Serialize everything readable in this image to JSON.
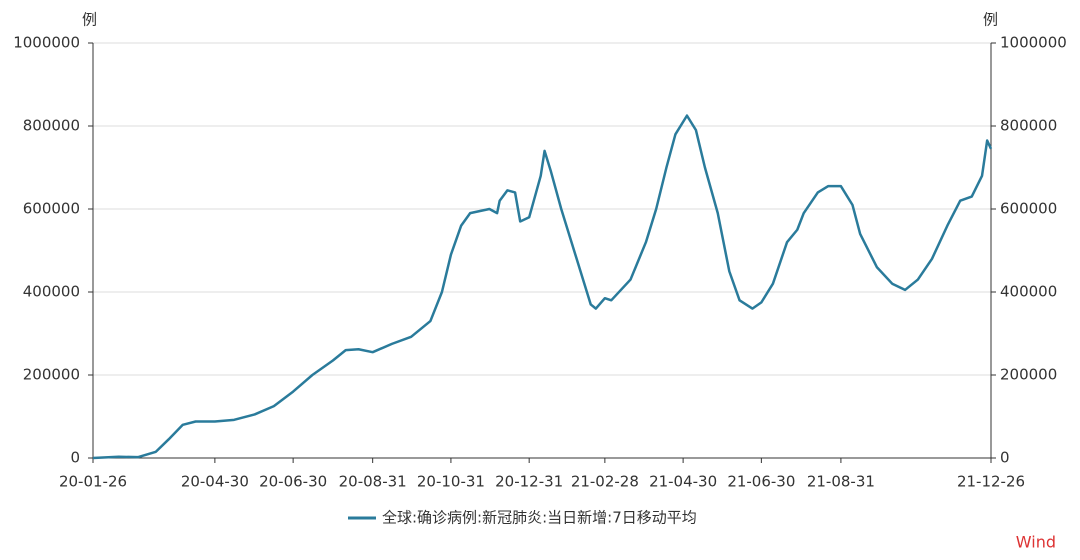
{
  "chart_data": {
    "type": "line",
    "y_label": "例",
    "y2_label": "例",
    "x": [
      "20-01-26",
      "20-02-15",
      "20-03-01",
      "20-03-15",
      "20-03-25",
      "20-04-05",
      "20-04-15",
      "20-04-30",
      "20-05-15",
      "20-05-31",
      "20-06-15",
      "20-06-30",
      "20-07-15",
      "20-07-31",
      "20-08-10",
      "20-08-20",
      "20-08-31",
      "20-09-15",
      "20-09-30",
      "20-10-15",
      "20-10-24",
      "20-10-31",
      "20-11-08",
      "20-11-15",
      "20-11-30",
      "20-12-06",
      "20-12-08",
      "20-12-14",
      "20-12-20",
      "20-12-24",
      "20-12-31",
      "21-01-09",
      "21-01-12",
      "21-01-17",
      "21-01-25",
      "21-02-06",
      "21-02-17",
      "21-02-21",
      "21-02-28",
      "21-03-05",
      "21-03-20",
      "21-04-01",
      "21-04-09",
      "21-04-17",
      "21-04-24",
      "21-05-03",
      "21-05-10",
      "21-05-17",
      "21-05-27",
      "21-06-05",
      "21-06-13",
      "21-06-23",
      "21-06-30",
      "21-07-09",
      "21-07-20",
      "21-07-28",
      "21-08-02",
      "21-08-13",
      "21-08-21",
      "21-08-31",
      "21-09-09",
      "21-09-15",
      "21-09-28",
      "21-10-10",
      "21-10-20",
      "21-10-30",
      "21-11-10",
      "21-11-22",
      "21-12-02",
      "21-12-11",
      "21-12-19",
      "21-12-23",
      "21-12-26"
    ],
    "series": [
      {
        "name": "全球:确诊病例:新冠肺炎:当日新增:7日移动平均",
        "color": "#2a7b9b",
        "values": [
          0,
          3000,
          2000,
          15000,
          45000,
          80000,
          88000,
          88000,
          92000,
          105000,
          125000,
          160000,
          200000,
          235000,
          260000,
          262000,
          255000,
          275000,
          292000,
          330000,
          400000,
          490000,
          560000,
          590000,
          600000,
          590000,
          620000,
          645000,
          640000,
          570000,
          580000,
          680000,
          740000,
          690000,
          600000,
          480000,
          370000,
          360000,
          385000,
          380000,
          430000,
          520000,
          600000,
          700000,
          780000,
          825000,
          790000,
          700000,
          590000,
          450000,
          380000,
          360000,
          375000,
          420000,
          520000,
          550000,
          590000,
          640000,
          655000,
          655000,
          610000,
          540000,
          460000,
          420000,
          405000,
          430000,
          480000,
          560000,
          620000,
          630000,
          680000,
          765000,
          745000
        ]
      }
    ],
    "xlim": [
      "20-01-26",
      "21-12-26"
    ],
    "xticks": [
      "20-01-26",
      "20-04-30",
      "20-06-30",
      "20-08-31",
      "20-10-31",
      "20-12-31",
      "21-02-28",
      "21-04-30",
      "21-06-30",
      "21-08-31",
      "21-12-26"
    ],
    "ylim": [
      0,
      1000000
    ],
    "yticks": [
      0,
      200000,
      400000,
      600000,
      800000,
      1000000
    ],
    "y2lim": [
      0,
      1000000
    ],
    "y2ticks": [
      0,
      200000,
      400000,
      600000,
      800000,
      1000000
    ],
    "grid": true,
    "legend": "bottom",
    "watermark": "Wind"
  }
}
